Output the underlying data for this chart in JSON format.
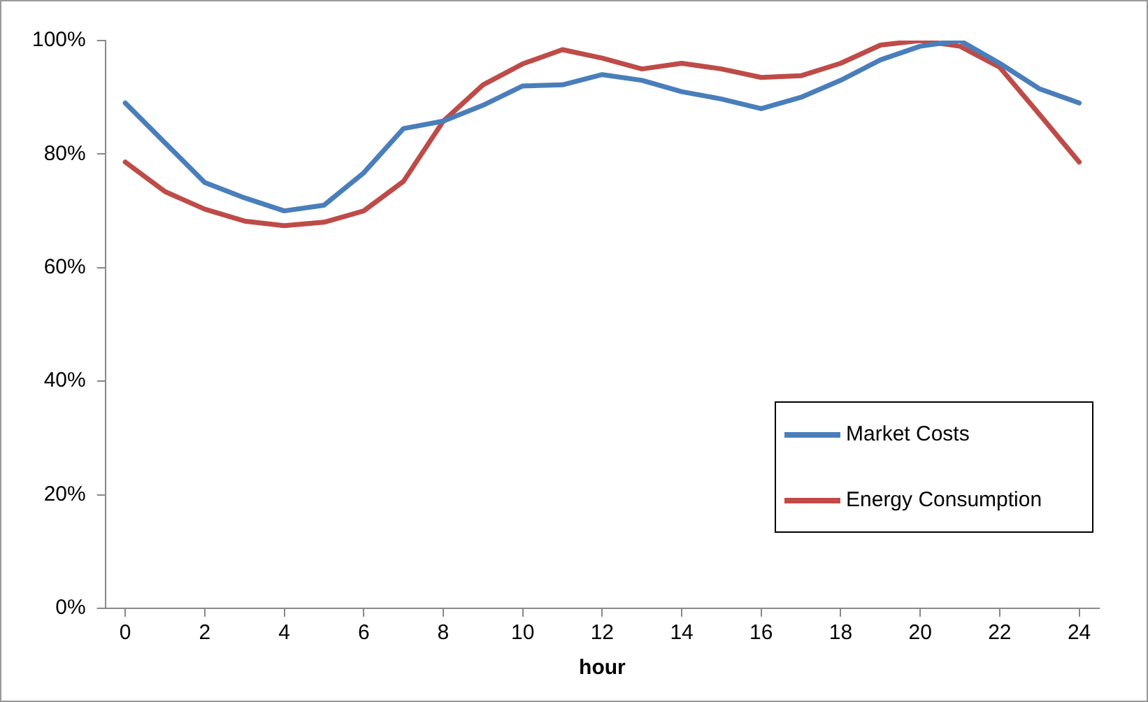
{
  "chart_data": {
    "type": "line",
    "xlabel": "hour",
    "x": [
      0,
      1,
      2,
      3,
      4,
      5,
      6,
      7,
      8,
      9,
      10,
      11,
      12,
      13,
      14,
      15,
      16,
      17,
      18,
      19,
      20,
      21,
      22,
      23,
      24
    ],
    "series": [
      {
        "name": "Market Costs",
        "color": "#4a7ebb",
        "values": [
          89,
          82,
          75,
          72.3,
          70,
          71,
          76.7,
          84.5,
          85.8,
          88.6,
          92,
          92.2,
          94,
          93,
          91,
          89.7,
          88,
          90,
          93,
          96.6,
          99,
          100,
          96,
          91.5,
          89
        ]
      },
      {
        "name": "Energy Consumption",
        "color": "#be4b48",
        "values": [
          78.6,
          73.4,
          70.3,
          68.2,
          67.4,
          68,
          70,
          75.2,
          85.8,
          92.2,
          95.9,
          98.4,
          96.9,
          95,
          96,
          95,
          93.5,
          93.8,
          96,
          99.2,
          100,
          99,
          95.3,
          87,
          78.6
        ]
      }
    ],
    "xlim": [
      -0.5,
      24.5
    ],
    "xticks": [
      0,
      2,
      4,
      6,
      8,
      10,
      12,
      14,
      16,
      18,
      20,
      22,
      24
    ],
    "ylim": [
      0,
      100
    ],
    "yticks": [
      {
        "value": 0,
        "label": "0%"
      },
      {
        "value": 20,
        "label": "20%"
      },
      {
        "value": 40,
        "label": "40%"
      },
      {
        "value": 60,
        "label": "60%"
      },
      {
        "value": 80,
        "label": "80%"
      },
      {
        "value": 100,
        "label": "100%"
      }
    ],
    "grid": false,
    "legend": "bottom right",
    "marker": "none",
    "line_style": "solid"
  }
}
